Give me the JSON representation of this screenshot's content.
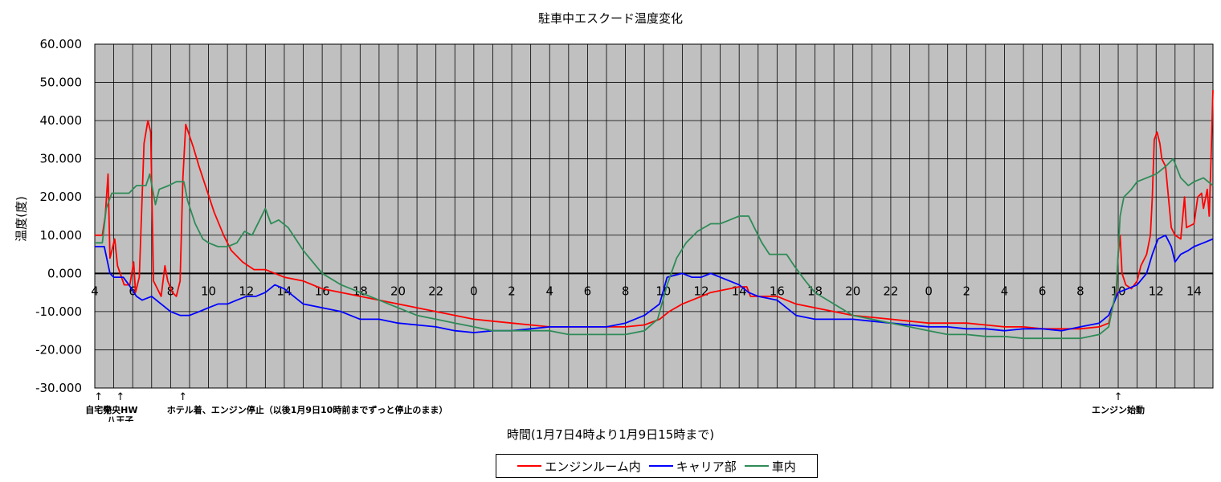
{
  "chart_data": {
    "type": "line",
    "title": "駐車中エスクード温度変化",
    "xlabel": "時間(1月7日4時より1月9日15時まで)",
    "ylabel": "温度(度)",
    "ylim": [
      -30,
      60
    ],
    "yticks": [
      "60.000",
      "50.000",
      "40.000",
      "30.000",
      "20.000",
      "10.000",
      "0.000",
      "-10.000",
      "-20.000",
      "-30.000"
    ],
    "xlim": [
      4,
      63
    ],
    "xticks": [
      {
        "x": 4,
        "label": "4"
      },
      {
        "x": 6,
        "label": "6"
      },
      {
        "x": 8,
        "label": "8"
      },
      {
        "x": 10,
        "label": "10"
      },
      {
        "x": 12,
        "label": "12"
      },
      {
        "x": 14,
        "label": "14"
      },
      {
        "x": 16,
        "label": "16"
      },
      {
        "x": 18,
        "label": "18"
      },
      {
        "x": 20,
        "label": "20"
      },
      {
        "x": 22,
        "label": "22"
      },
      {
        "x": 24,
        "label": "0"
      },
      {
        "x": 26,
        "label": "2"
      },
      {
        "x": 28,
        "label": "4"
      },
      {
        "x": 30,
        "label": "6"
      },
      {
        "x": 32,
        "label": "8"
      },
      {
        "x": 34,
        "label": "10"
      },
      {
        "x": 36,
        "label": "12"
      },
      {
        "x": 38,
        "label": "14"
      },
      {
        "x": 40,
        "label": "16"
      },
      {
        "x": 42,
        "label": "18"
      },
      {
        "x": 44,
        "label": "20"
      },
      {
        "x": 46,
        "label": "22"
      },
      {
        "x": 48,
        "label": "0"
      },
      {
        "x": 50,
        "label": "2"
      },
      {
        "x": 52,
        "label": "4"
      },
      {
        "x": 54,
        "label": "6"
      },
      {
        "x": 56,
        "label": "8"
      },
      {
        "x": 58,
        "label": "10"
      },
      {
        "x": 60,
        "label": "12"
      },
      {
        "x": 62,
        "label": "14"
      }
    ],
    "grid": true,
    "legend_position": "bottom",
    "series": [
      {
        "name": "エンジンルーム内",
        "color": "#ff0000",
        "points": [
          [
            4,
            10
          ],
          [
            4.4,
            10
          ],
          [
            4.55,
            15
          ],
          [
            4.7,
            26
          ],
          [
            4.8,
            4
          ],
          [
            5.05,
            9
          ],
          [
            5.2,
            2
          ],
          [
            5.55,
            -3
          ],
          [
            5.85,
            -3
          ],
          [
            6.05,
            3
          ],
          [
            6.15,
            -5
          ],
          [
            6.35,
            -1
          ],
          [
            6.6,
            34
          ],
          [
            6.8,
            40
          ],
          [
            6.95,
            37
          ],
          [
            7.1,
            -2
          ],
          [
            7.5,
            -6
          ],
          [
            7.7,
            2
          ],
          [
            7.85,
            -2
          ],
          [
            8.1,
            -5
          ],
          [
            8.3,
            -6
          ],
          [
            8.5,
            -2
          ],
          [
            8.65,
            25
          ],
          [
            8.8,
            39
          ],
          [
            9.2,
            33
          ],
          [
            9.5,
            28
          ],
          [
            9.9,
            22
          ],
          [
            10.3,
            16
          ],
          [
            10.8,
            10
          ],
          [
            11.2,
            6
          ],
          [
            11.8,
            3
          ],
          [
            12.4,
            1
          ],
          [
            13,
            1
          ],
          [
            13.5,
            0
          ],
          [
            14,
            -1
          ],
          [
            15,
            -2
          ],
          [
            16,
            -4
          ],
          [
            17,
            -5
          ],
          [
            18,
            -6
          ],
          [
            19,
            -7
          ],
          [
            20,
            -8
          ],
          [
            21,
            -9
          ],
          [
            22,
            -10
          ],
          [
            23,
            -11
          ],
          [
            24,
            -12
          ],
          [
            25,
            -12.5
          ],
          [
            26,
            -13
          ],
          [
            27,
            -13.5
          ],
          [
            28,
            -14
          ],
          [
            29,
            -14
          ],
          [
            30,
            -14
          ],
          [
            31,
            -14
          ],
          [
            32,
            -14
          ],
          [
            33,
            -13.5
          ],
          [
            33.8,
            -12
          ],
          [
            34.3,
            -10
          ],
          [
            35,
            -8
          ],
          [
            36,
            -6
          ],
          [
            36.5,
            -5
          ],
          [
            37,
            -4.5
          ],
          [
            37.5,
            -4
          ],
          [
            38,
            -3.5
          ],
          [
            38.4,
            -3.5
          ],
          [
            38.6,
            -6
          ],
          [
            39,
            -6
          ],
          [
            40,
            -6
          ],
          [
            41,
            -8
          ],
          [
            42,
            -9
          ],
          [
            43,
            -10
          ],
          [
            44,
            -11
          ],
          [
            45,
            -11.5
          ],
          [
            46,
            -12
          ],
          [
            47,
            -12.5
          ],
          [
            48,
            -13
          ],
          [
            49,
            -13
          ],
          [
            50,
            -13
          ],
          [
            51,
            -13.5
          ],
          [
            52,
            -14
          ],
          [
            53,
            -14
          ],
          [
            54,
            -14.5
          ],
          [
            55,
            -14.5
          ],
          [
            56,
            -14.5
          ],
          [
            57,
            -14
          ],
          [
            57.5,
            -13
          ],
          [
            57.9,
            -5
          ],
          [
            58,
            5
          ],
          [
            58.1,
            10
          ],
          [
            58.2,
            0
          ],
          [
            58.4,
            -3
          ],
          [
            58.7,
            -4
          ],
          [
            59,
            -2
          ],
          [
            59.2,
            2
          ],
          [
            59.5,
            5
          ],
          [
            59.7,
            10
          ],
          [
            59.8,
            20
          ],
          [
            59.9,
            35
          ],
          [
            60.05,
            37
          ],
          [
            60.2,
            34
          ],
          [
            60.3,
            30
          ],
          [
            60.5,
            28
          ],
          [
            60.8,
            12
          ],
          [
            61,
            10
          ],
          [
            61.3,
            9
          ],
          [
            61.5,
            20
          ],
          [
            61.6,
            12
          ],
          [
            62,
            13
          ],
          [
            62.2,
            20
          ],
          [
            62.4,
            21
          ],
          [
            62.5,
            17
          ],
          [
            62.7,
            22
          ],
          [
            62.8,
            15
          ],
          [
            62.9,
            30
          ],
          [
            63,
            48
          ]
        ]
      },
      {
        "name": "キャリア部",
        "color": "#0000ff",
        "points": [
          [
            4,
            7
          ],
          [
            4.5,
            7
          ],
          [
            4.8,
            0
          ],
          [
            5,
            -1
          ],
          [
            5.5,
            -1
          ],
          [
            5.8,
            -3
          ],
          [
            6.2,
            -6
          ],
          [
            6.5,
            -7
          ],
          [
            7,
            -6
          ],
          [
            7.5,
            -8
          ],
          [
            8,
            -10
          ],
          [
            8.5,
            -11
          ],
          [
            9,
            -11
          ],
          [
            9.5,
            -10
          ],
          [
            10,
            -9
          ],
          [
            10.5,
            -8
          ],
          [
            11,
            -8
          ],
          [
            11.5,
            -7
          ],
          [
            12,
            -6
          ],
          [
            12.5,
            -6
          ],
          [
            13,
            -5
          ],
          [
            13.5,
            -3
          ],
          [
            14,
            -4
          ],
          [
            14.5,
            -6
          ],
          [
            15,
            -8
          ],
          [
            16,
            -9
          ],
          [
            17,
            -10
          ],
          [
            18,
            -12
          ],
          [
            19,
            -12
          ],
          [
            20,
            -13
          ],
          [
            21,
            -13.5
          ],
          [
            22,
            -14
          ],
          [
            23,
            -15
          ],
          [
            24,
            -15.5
          ],
          [
            25,
            -15
          ],
          [
            26,
            -15
          ],
          [
            27,
            -14.5
          ],
          [
            28,
            -14
          ],
          [
            29,
            -14
          ],
          [
            30,
            -14
          ],
          [
            31,
            -14
          ],
          [
            32,
            -13
          ],
          [
            33,
            -11
          ],
          [
            33.8,
            -8
          ],
          [
            34.2,
            -1
          ],
          [
            35,
            0
          ],
          [
            35.5,
            -1
          ],
          [
            36,
            -1
          ],
          [
            36.5,
            0
          ],
          [
            37,
            -1
          ],
          [
            37.5,
            -2
          ],
          [
            38,
            -3
          ],
          [
            38.5,
            -5
          ],
          [
            39,
            -6
          ],
          [
            40,
            -7
          ],
          [
            41,
            -11
          ],
          [
            42,
            -12
          ],
          [
            43,
            -12
          ],
          [
            44,
            -12
          ],
          [
            45,
            -12.5
          ],
          [
            46,
            -13
          ],
          [
            47,
            -13.5
          ],
          [
            48,
            -14
          ],
          [
            49,
            -14
          ],
          [
            50,
            -14.5
          ],
          [
            51,
            -14.5
          ],
          [
            52,
            -15
          ],
          [
            53,
            -14.5
          ],
          [
            54,
            -14.5
          ],
          [
            55,
            -15
          ],
          [
            56,
            -14
          ],
          [
            57,
            -13
          ],
          [
            57.5,
            -11
          ],
          [
            58,
            -5
          ],
          [
            58.5,
            -4
          ],
          [
            59,
            -3
          ],
          [
            59.5,
            0
          ],
          [
            59.8,
            5
          ],
          [
            60.1,
            9
          ],
          [
            60.5,
            10
          ],
          [
            60.8,
            7
          ],
          [
            61,
            3
          ],
          [
            61.3,
            5
          ],
          [
            61.7,
            6
          ],
          [
            62,
            7
          ],
          [
            62.5,
            8
          ],
          [
            63,
            9
          ]
        ]
      },
      {
        "name": "車内",
        "color": "#2e8b57",
        "points": [
          [
            4,
            8
          ],
          [
            4.4,
            8
          ],
          [
            4.6,
            17
          ],
          [
            4.9,
            21
          ],
          [
            5.3,
            21
          ],
          [
            5.8,
            21
          ],
          [
            6.2,
            23
          ],
          [
            6.7,
            23
          ],
          [
            6.9,
            26
          ],
          [
            7.2,
            18
          ],
          [
            7.4,
            22
          ],
          [
            7.9,
            23
          ],
          [
            8.3,
            24
          ],
          [
            8.7,
            24
          ],
          [
            8.9,
            19
          ],
          [
            9.3,
            13
          ],
          [
            9.7,
            9
          ],
          [
            10,
            8
          ],
          [
            10.5,
            7
          ],
          [
            11,
            7
          ],
          [
            11.5,
            8
          ],
          [
            11.9,
            11
          ],
          [
            12.3,
            10
          ],
          [
            12.7,
            14
          ],
          [
            13,
            17
          ],
          [
            13.3,
            13
          ],
          [
            13.7,
            14
          ],
          [
            14.2,
            12
          ],
          [
            14.6,
            9
          ],
          [
            15,
            6
          ],
          [
            15.5,
            3
          ],
          [
            16,
            0
          ],
          [
            17,
            -3
          ],
          [
            18,
            -5
          ],
          [
            19,
            -7
          ],
          [
            20,
            -9
          ],
          [
            21,
            -11
          ],
          [
            22,
            -12
          ],
          [
            23,
            -13
          ],
          [
            24,
            -14
          ],
          [
            25,
            -15
          ],
          [
            26,
            -15
          ],
          [
            27,
            -15
          ],
          [
            28,
            -15
          ],
          [
            29,
            -16
          ],
          [
            30,
            -16
          ],
          [
            31,
            -16
          ],
          [
            32,
            -16
          ],
          [
            33,
            -15
          ],
          [
            33.7,
            -12
          ],
          [
            34.2,
            -3
          ],
          [
            34.7,
            4
          ],
          [
            35.2,
            8
          ],
          [
            35.8,
            11
          ],
          [
            36.5,
            13
          ],
          [
            37,
            13
          ],
          [
            37.5,
            14
          ],
          [
            38,
            15
          ],
          [
            38.5,
            15
          ],
          [
            38.8,
            12
          ],
          [
            39.2,
            8
          ],
          [
            39.6,
            5
          ],
          [
            40,
            5
          ],
          [
            40.5,
            5
          ],
          [
            40.9,
            2
          ],
          [
            41.5,
            -2
          ],
          [
            42,
            -5
          ],
          [
            43,
            -8
          ],
          [
            44,
            -11
          ],
          [
            45,
            -12
          ],
          [
            46,
            -13
          ],
          [
            47,
            -14
          ],
          [
            48,
            -15
          ],
          [
            49,
            -16
          ],
          [
            50,
            -16
          ],
          [
            51,
            -16.5
          ],
          [
            52,
            -16.5
          ],
          [
            53,
            -17
          ],
          [
            54,
            -17
          ],
          [
            55,
            -17
          ],
          [
            56,
            -17
          ],
          [
            57,
            -16
          ],
          [
            57.5,
            -14
          ],
          [
            57.9,
            -4
          ],
          [
            58.1,
            15
          ],
          [
            58.3,
            20
          ],
          [
            58.7,
            22
          ],
          [
            59,
            24
          ],
          [
            59.5,
            25
          ],
          [
            60,
            26
          ],
          [
            60.5,
            28
          ],
          [
            60.9,
            30
          ],
          [
            61.3,
            25
          ],
          [
            61.7,
            23
          ],
          [
            62,
            24
          ],
          [
            62.5,
            25
          ],
          [
            63,
            23
          ]
        ]
      }
    ],
    "annotations": [
      {
        "x": 4.2,
        "arrow": "↑",
        "lines": [
          "自宅発"
        ]
      },
      {
        "x": 5.35,
        "arrow": "↑",
        "lines": [
          "中央HW",
          "八王子"
        ]
      },
      {
        "x": 8.65,
        "arrow": "↑",
        "lines": [
          "ホテル着、エンジン停止（以後1月9日10時前までずっと停止のまま）"
        ]
      },
      {
        "x": 58.0,
        "arrow": "↑",
        "lines": [
          "エンジン始動"
        ]
      }
    ]
  }
}
